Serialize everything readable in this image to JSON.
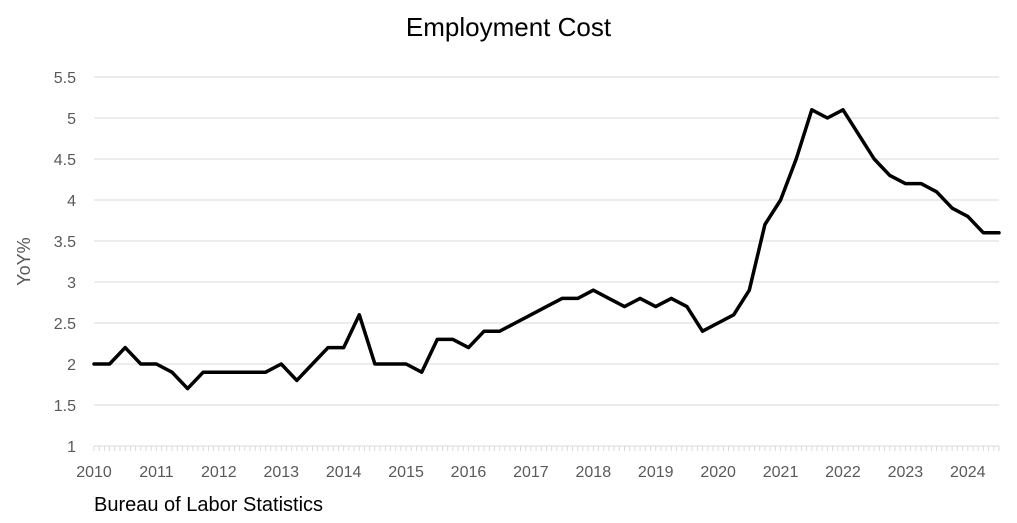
{
  "chart_data": {
    "type": "line",
    "title": "Employment Cost",
    "ylabel": "YoY%",
    "xlabel": "",
    "source": "Bureau of Labor Statistics",
    "xlim": [
      2010,
      2024.5
    ],
    "ylim": [
      1,
      5.5
    ],
    "yticks": [
      "1",
      "1.5",
      "2",
      "2.5",
      "3",
      "3.5",
      "4",
      "4.5",
      "5",
      "5.5"
    ],
    "xticks": [
      "2010",
      "2011",
      "2012",
      "2013",
      "2014",
      "2015",
      "2016",
      "2017",
      "2018",
      "2019",
      "2020",
      "2021",
      "2022",
      "2023",
      "2024"
    ],
    "grid": true,
    "line_color": "#000000",
    "series": [
      {
        "x": [
          2010.0,
          2010.25,
          2010.5,
          2010.75,
          2011.0,
          2011.25,
          2011.5,
          2011.75,
          2012.0,
          2012.25,
          2012.5,
          2012.75,
          2013.0,
          2013.25,
          2013.5,
          2013.75,
          2014.0,
          2014.25,
          2014.5,
          2014.75,
          2015.0,
          2015.25,
          2015.5,
          2015.75,
          2016.0,
          2016.25,
          2016.5,
          2016.75,
          2017.0,
          2017.25,
          2017.5,
          2017.75,
          2018.0,
          2018.25,
          2018.5,
          2018.75,
          2019.0,
          2019.25,
          2019.5,
          2019.75,
          2020.0,
          2020.25,
          2020.5,
          2020.75,
          2021.0,
          2021.25,
          2021.5,
          2021.75,
          2022.0,
          2022.25,
          2022.5,
          2022.75,
          2023.0,
          2023.25,
          2023.5,
          2023.75,
          2024.0,
          2024.25,
          2024.5
        ],
        "values": [
          2.0,
          2.0,
          2.2,
          2.0,
          2.0,
          1.9,
          1.7,
          1.9,
          1.9,
          1.9,
          1.9,
          1.9,
          2.0,
          1.8,
          2.0,
          2.2,
          2.2,
          2.6,
          2.0,
          2.0,
          2.0,
          1.9,
          2.3,
          2.3,
          2.2,
          2.4,
          2.4,
          2.5,
          2.6,
          2.7,
          2.8,
          2.8,
          2.9,
          2.8,
          2.7,
          2.8,
          2.7,
          2.8,
          2.7,
          2.4,
          2.5,
          2.6,
          2.9,
          3.7,
          4.0,
          4.5,
          5.1,
          5.0,
          5.1,
          4.8,
          4.5,
          4.3,
          4.2,
          4.2,
          4.1,
          3.9,
          3.8,
          3.6,
          3.6
        ]
      }
    ]
  }
}
